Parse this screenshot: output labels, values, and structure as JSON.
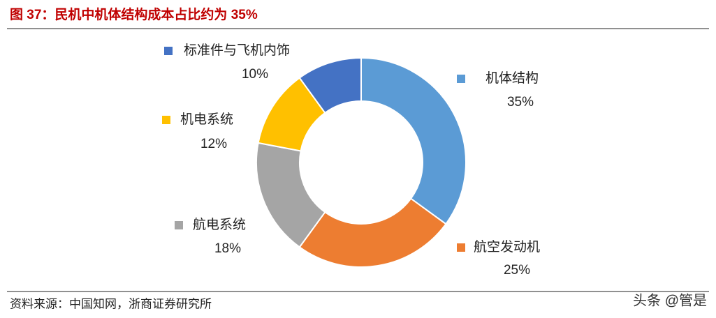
{
  "chart_data": {
    "type": "donut",
    "title": "图 37：民机中机体结构成本占比约为 35%",
    "categories": [
      "机体结构",
      "航空发动机",
      "航电系统",
      "机电系统",
      "标准件与飞机内饰"
    ],
    "values": [
      35,
      25,
      18,
      12,
      10
    ],
    "value_labels": [
      "35%",
      "25%",
      "18%",
      "12%",
      "10%"
    ],
    "colors": [
      "#5b9bd5",
      "#ed7d31",
      "#a5a5a5",
      "#ffc000",
      "#4472c4"
    ],
    "source": "资料来源：中国知网，浙商证券研究所",
    "watermark": "头条 @管是"
  }
}
